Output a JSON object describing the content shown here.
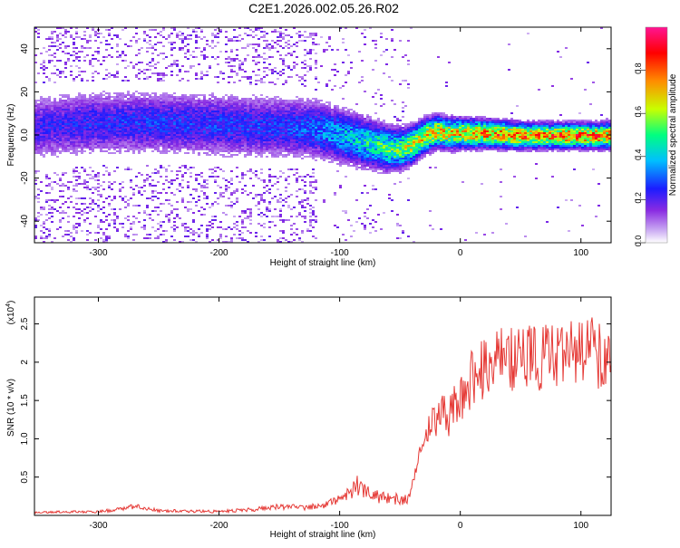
{
  "title": "C2E1.2026.002.05.26.R02",
  "colors": {
    "signal": "#e53935",
    "colormap": [
      "#ffffff",
      "#c9a8f2",
      "#8a2be2",
      "#1c1cff",
      "#00bfff",
      "#00ff80",
      "#c8ff00",
      "#ff8c00",
      "#ff0000",
      "#ff1493"
    ]
  },
  "chart_data": [
    {
      "type": "heatmap",
      "xlabel": "Height of straight line (km)",
      "ylabel": "Frequency (Hz)",
      "xlim": [
        -353,
        125
      ],
      "ylim": [
        -50,
        50
      ],
      "xticks": [
        -300,
        -200,
        -100,
        0,
        100
      ],
      "yticks": [
        -40,
        -20,
        0,
        20,
        40
      ],
      "colorbar": {
        "label": "Normalized spectral amplitude",
        "range": [
          0,
          1
        ],
        "ticks": [
          "0.0",
          "0.2",
          "0.4",
          "0.6",
          "0.8"
        ]
      },
      "ridge": {
        "x": [
          -353,
          -300,
          -250,
          -200,
          -150,
          -120,
          -100,
          -80,
          -60,
          -50,
          -40,
          -30,
          -20,
          -10,
          0,
          20,
          50,
          80,
          100,
          125
        ],
        "freq": [
          4,
          6,
          6,
          5,
          4,
          3,
          0,
          -3,
          -6,
          -6,
          -4,
          0,
          2,
          1,
          1,
          1,
          0,
          0,
          0,
          0
        ],
        "amplitude": [
          0.25,
          0.28,
          0.3,
          0.3,
          0.3,
          0.35,
          0.45,
          0.5,
          0.6,
          0.65,
          0.7,
          0.75,
          0.8,
          0.8,
          0.82,
          0.85,
          0.88,
          0.9,
          0.9,
          0.88
        ]
      }
    },
    {
      "type": "line",
      "xlabel": "Height of straight line (km)",
      "ylabel": "SNR (10 * v/v)",
      "scale_label": "(x10",
      "scale_exp": "4",
      "xlim": [
        -353,
        125
      ],
      "ylim": [
        0,
        2.85
      ],
      "xticks": [
        -300,
        -200,
        -100,
        0,
        100
      ],
      "yticks": [
        0.5,
        1.0,
        1.5,
        2.0,
        2.5
      ],
      "series": [
        {
          "x": [
            -353,
            -300,
            -280,
            -270,
            -250,
            -200,
            -170,
            -150,
            -130,
            -110,
            -95,
            -85,
            -70,
            -55,
            -45,
            -38,
            -34,
            -30,
            -25,
            -20,
            -15,
            -10,
            -5,
            0,
            10,
            20,
            30,
            40,
            50,
            60,
            80,
            100,
            110,
            125
          ],
          "y": [
            0.04,
            0.05,
            0.08,
            0.12,
            0.06,
            0.05,
            0.08,
            0.12,
            0.1,
            0.15,
            0.25,
            0.4,
            0.25,
            0.22,
            0.2,
            0.45,
            0.8,
            1.0,
            1.2,
            1.3,
            1.3,
            1.3,
            1.4,
            1.5,
            1.8,
            1.9,
            2.0,
            2.05,
            2.05,
            2.08,
            2.05,
            2.1,
            2.15,
            2.0
          ]
        }
      ]
    }
  ]
}
